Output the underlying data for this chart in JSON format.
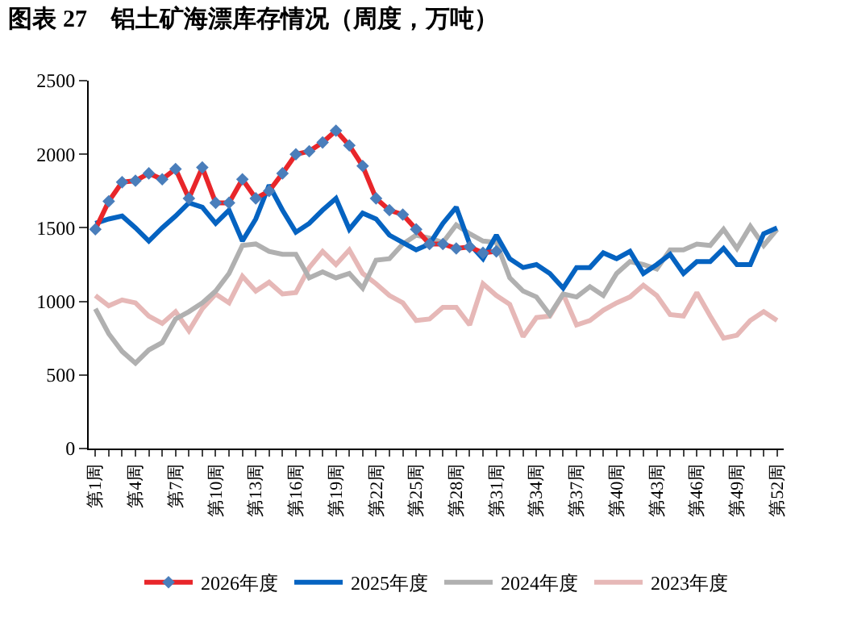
{
  "chart_data": {
    "type": "line",
    "title": "图表 27　铝土矿海漂库存情况（周度，万吨）",
    "categories": [
      "第1周",
      null,
      null,
      "第4周",
      null,
      null,
      "第7周",
      null,
      null,
      "第10周",
      null,
      null,
      "第13周",
      null,
      null,
      "第16周",
      null,
      null,
      "第19周",
      null,
      null,
      "第22周",
      null,
      null,
      "第25周",
      null,
      null,
      "第28周",
      null,
      null,
      "第31周",
      null,
      null,
      "第34周",
      null,
      null,
      "第37周",
      null,
      null,
      "第40周",
      null,
      null,
      "第43周",
      null,
      null,
      "第46周",
      null,
      null,
      "第49周",
      null,
      null,
      "第52周"
    ],
    "series": [
      {
        "name": "2026年度",
        "color": "#e8262a",
        "marker": "diamond",
        "colors": [
          "#4a7ebb",
          "#4a7ebb",
          "#4a7ebb",
          "#4a7ebb",
          "#4a7ebb",
          "#4a7ebb",
          "#4a7ebb",
          "#4a7ebb",
          "#4a7ebb",
          "#4a7ebb",
          "#4a7ebb",
          "#4a7ebb",
          "#4a7ebb",
          "#4a7ebb",
          "#4a7ebb",
          "#4a7ebb",
          "#4a7ebb",
          "#4a7ebb",
          "#4a7ebb",
          "#4a7ebb",
          "#4a7ebb",
          "#4a7ebb",
          "#4a7ebb",
          "#4a7ebb",
          "#4a7ebb",
          "#4a7ebb",
          "#4a7ebb",
          "#4a7ebb",
          "#4a7ebb",
          "#4a7ebb",
          "#4a7ebb",
          null,
          null,
          null,
          null,
          null,
          null,
          null,
          null,
          null,
          null,
          null,
          null,
          null,
          null,
          null,
          null,
          null,
          null,
          null,
          null,
          null
        ],
        "values": [
          1490,
          1680,
          1810,
          1820,
          1870,
          1830,
          1900,
          1700,
          1910,
          1670,
          1670,
          1830,
          1700,
          1750,
          1870,
          2000,
          2020,
          2080,
          2160,
          2060,
          1920,
          1700,
          1620,
          1590,
          1490,
          1390,
          1390,
          1360,
          1370,
          1330,
          1340,
          null,
          null,
          null,
          null,
          null,
          null,
          null,
          null,
          null,
          null,
          null,
          null,
          null,
          null,
          null,
          null,
          null,
          null,
          null,
          null,
          null
        ]
      },
      {
        "name": "2025年度",
        "color": "#0563c1",
        "values": [
          1530,
          1560,
          1580,
          1500,
          1410,
          1500,
          1580,
          1670,
          1640,
          1530,
          1620,
          1410,
          1560,
          1790,
          1620,
          1470,
          1530,
          1620,
          1700,
          1490,
          1600,
          1560,
          1450,
          1400,
          1350,
          1390,
          1530,
          1640,
          1390,
          1290,
          1450,
          1290,
          1230,
          1250,
          1190,
          1090,
          1230,
          1230,
          1330,
          1290,
          1340,
          1190,
          1250,
          1320,
          1190,
          1270,
          1270,
          1360,
          1250,
          1250,
          1460,
          1500
        ]
      },
      {
        "name": "2024年度",
        "color": "#b0b0b0",
        "values": [
          950,
          780,
          660,
          580,
          670,
          720,
          880,
          930,
          990,
          1070,
          1190,
          1380,
          1390,
          1340,
          1320,
          1320,
          1160,
          1200,
          1160,
          1190,
          1090,
          1280,
          1290,
          1390,
          1450,
          1430,
          1400,
          1520,
          1460,
          1410,
          1400,
          1160,
          1070,
          1030,
          910,
          1050,
          1030,
          1100,
          1040,
          1190,
          1270,
          1250,
          1220,
          1350,
          1350,
          1390,
          1380,
          1490,
          1360,
          1510,
          1380,
          1490
        ]
      },
      {
        "name": "2023年度",
        "color": "#e6b8b7",
        "values": [
          1040,
          970,
          1010,
          990,
          900,
          850,
          930,
          800,
          950,
          1050,
          990,
          1170,
          1070,
          1130,
          1050,
          1060,
          1230,
          1340,
          1250,
          1350,
          1190,
          1120,
          1040,
          990,
          870,
          880,
          960,
          960,
          840,
          1120,
          1040,
          980,
          760,
          890,
          900,
          1050,
          840,
          870,
          940,
          990,
          1030,
          1110,
          1040,
          910,
          900,
          1060,
          900,
          750,
          770,
          870,
          930,
          870
        ]
      }
    ],
    "ylim": [
      0,
      2500
    ],
    "yticks": [
      0,
      500,
      1000,
      1500,
      2000,
      2500
    ],
    "grid": false,
    "legend": "bottom",
    "marker": "none",
    "line_style": "solid"
  }
}
